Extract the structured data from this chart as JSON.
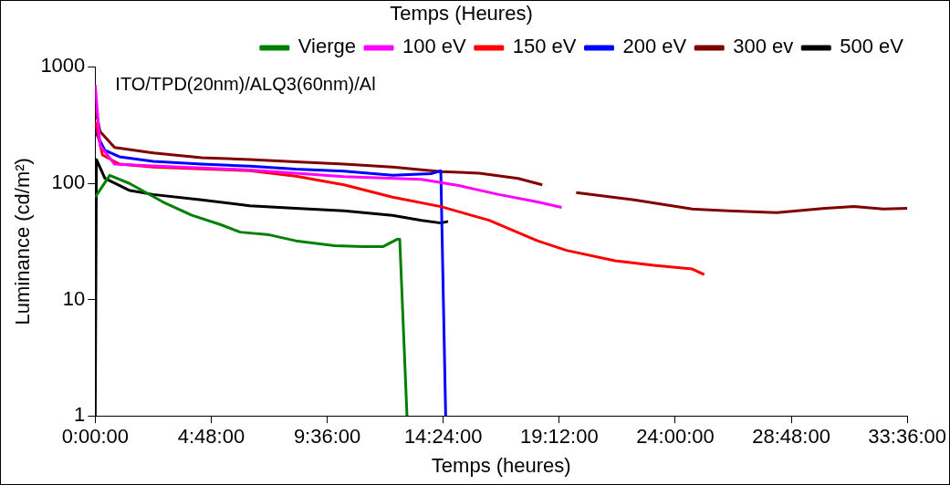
{
  "chart_data": {
    "type": "line",
    "title": "Temps (Heures)",
    "xlabel": "Temps (heures)",
    "ylabel": "Luminance (cd/m²)",
    "annotations": [
      "ITO/TPD(20nm)/ALQ3(60nm)/Al"
    ],
    "log": "y",
    "legend": "top right",
    "grid": false,
    "marker": "none",
    "line_style": "solid",
    "xlim": [
      0,
      33.6
    ],
    "xticks": [
      {
        "value": 0,
        "label": "0:00:00"
      },
      {
        "value": 4.8,
        "label": "4:48:00"
      },
      {
        "value": 9.6,
        "label": "9:36:00"
      },
      {
        "value": 14.4,
        "label": "14:24:00"
      },
      {
        "value": 19.2,
        "label": "19:12:00"
      },
      {
        "value": 24,
        "label": "24:00:00"
      },
      {
        "value": 28.8,
        "label": "28:48:00"
      },
      {
        "value": 33.6,
        "label": "33:36:00"
      }
    ],
    "ylim": [
      1,
      1000
    ],
    "yticks": [
      1,
      10,
      100,
      1000
    ],
    "series": [
      {
        "name": "Vierge",
        "color": "#008000",
        "x": [
          0,
          0.6,
          1.4,
          2.8,
          4.0,
          5.2,
          6.0,
          7.2,
          8.3,
          9.9,
          11.1,
          11.9,
          12.5,
          12.6,
          12.9
        ],
        "values": [
          76,
          117,
          100,
          69,
          53,
          44,
          38,
          36,
          32,
          29,
          28.5,
          28.5,
          33,
          33,
          1
        ]
      },
      {
        "name": "100 eV",
        "color": "#ff00ff",
        "x": [
          0,
          0.2,
          0.8,
          2.4,
          6.4,
          10.3,
          13.5,
          15.1,
          16.7,
          18.3,
          19.3
        ],
        "values": [
          700,
          211,
          146,
          141,
          130,
          114,
          108,
          95,
          80,
          69,
          62
        ]
      },
      {
        "name": "150 eV",
        "color": "#ff0000",
        "x": [
          0,
          0.3,
          1.0,
          2.4,
          4.4,
          6.4,
          8.3,
          10.3,
          12.3,
          14.3,
          16.3,
          18.3,
          19.5,
          21.5,
          23.1,
          24.7,
          25.2
        ],
        "values": [
          335,
          175,
          146,
          138,
          133,
          128,
          115,
          97,
          76,
          63,
          48,
          32,
          26.5,
          21.6,
          19.7,
          18.3,
          16.4
        ]
      },
      {
        "name": "200 eV",
        "color": "#0000ff",
        "x": [
          0,
          0.4,
          1.0,
          2.4,
          4.4,
          6.4,
          8.3,
          10.3,
          12.3,
          13.9,
          14.3,
          14.5
        ],
        "values": [
          279,
          192,
          169,
          154,
          146,
          140,
          132,
          127,
          117,
          121,
          128,
          1
        ]
      },
      {
        "name": "300 ev",
        "color": "#800000",
        "x": [
          0,
          0.2,
          0.8,
          2.4,
          4.4,
          6.4,
          8.3,
          10.3,
          12.3,
          14.3,
          15.9,
          17.5,
          18.5,
          19.2,
          19.9,
          22.3,
          24.7,
          26.2,
          28.2,
          30.2,
          31.4,
          32.6,
          33.6
        ],
        "values": [
          443,
          279,
          203,
          182,
          166,
          160,
          153,
          146,
          138,
          126,
          122,
          110,
          97,
          null,
          83,
          72,
          60,
          58,
          56,
          61,
          63,
          60,
          61
        ]
      },
      {
        "name": "500 eV",
        "color": "#000000",
        "x": [
          0,
          0.05,
          0.4,
          1.4,
          2.4,
          4.4,
          6.4,
          8.3,
          10.3,
          12.3,
          13.5,
          14.3,
          14.6
        ],
        "values": [
          1,
          160,
          110,
          87,
          80,
          72,
          64,
          61,
          58,
          53,
          48,
          45.5,
          47
        ]
      }
    ]
  }
}
